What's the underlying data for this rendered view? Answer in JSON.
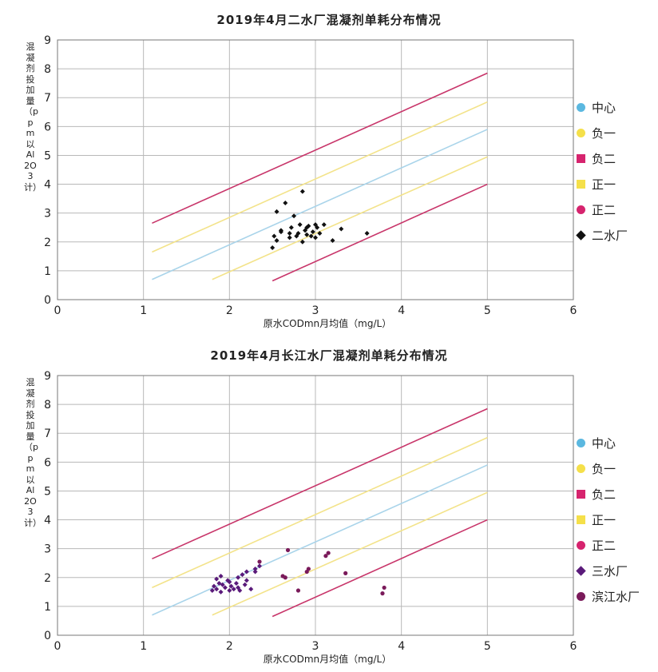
{
  "charts": [
    {
      "title": "2019年4月二水厂混凝剂单耗分布情况",
      "xlabel": "原水CODmn月均值（mg/L）",
      "ylabel": "混凝剂投加量（ppm以Al2O3计）",
      "legend": [
        {
          "label": "中心",
          "shape": "circle",
          "color": "#5bb8e0"
        },
        {
          "label": "负一",
          "shape": "circle",
          "color": "#f5e04a"
        },
        {
          "label": "负二",
          "shape": "square",
          "color": "#d6246e"
        },
        {
          "label": "正一",
          "shape": "square",
          "color": "#f5e04a"
        },
        {
          "label": "正二",
          "shape": "circle",
          "color": "#d6246e"
        },
        {
          "label": "二水厂",
          "shape": "diamond",
          "color": "#111111"
        }
      ]
    },
    {
      "title": "2019年4月长江水厂混凝剂单耗分布情况",
      "xlabel": "原水CODmn月均值（mg/L）",
      "ylabel": "混凝剂投加量（ppm以Al2O3计）",
      "legend": [
        {
          "label": "中心",
          "shape": "circle",
          "color": "#5bb8e0"
        },
        {
          "label": "负一",
          "shape": "circle",
          "color": "#f5e04a"
        },
        {
          "label": "负二",
          "shape": "square",
          "color": "#d6246e"
        },
        {
          "label": "正一",
          "shape": "square",
          "color": "#f5e04a"
        },
        {
          "label": "正二",
          "shape": "circle",
          "color": "#d6246e"
        },
        {
          "label": "三水厂",
          "shape": "diamond",
          "color": "#5a1a7a"
        },
        {
          "label": "滨江水厂",
          "shape": "circle",
          "color": "#7a1a5a"
        }
      ]
    }
  ],
  "chart_data": [
    {
      "type": "scatter",
      "title": "2019年4月二水厂混凝剂单耗分布情况",
      "xlabel": "原水CODmn月均值（mg/L）",
      "ylabel": "混凝剂投加量（ppm以Al2O3计）",
      "xlim": [
        0,
        6
      ],
      "ylim": [
        0,
        9
      ],
      "xticks": [
        0,
        1,
        2,
        3,
        4,
        5,
        6
      ],
      "yticks": [
        0,
        1,
        2,
        3,
        4,
        5,
        6,
        7,
        8,
        9
      ],
      "grid": true,
      "legend_position": "right",
      "lines": [
        {
          "name": "正二",
          "color": "#c8356a",
          "x": [
            1.1,
            5.0
          ],
          "y": [
            2.65,
            7.85
          ]
        },
        {
          "name": "正一",
          "color": "#f3e38a",
          "x": [
            1.1,
            5.0
          ],
          "y": [
            1.65,
            6.85
          ]
        },
        {
          "name": "中心",
          "color": "#a9d4ea",
          "x": [
            1.1,
            5.0
          ],
          "y": [
            0.7,
            5.9
          ]
        },
        {
          "name": "负一",
          "color": "#f3e38a",
          "x": [
            1.8,
            5.0
          ],
          "y": [
            0.7,
            4.95
          ]
        },
        {
          "name": "负二",
          "color": "#c8356a",
          "x": [
            2.5,
            5.0
          ],
          "y": [
            0.65,
            4.0
          ]
        }
      ],
      "series": [
        {
          "name": "二水厂",
          "color": "#111111",
          "shape": "diamond",
          "x": [
            2.5,
            2.52,
            2.55,
            2.6,
            2.65,
            2.7,
            2.72,
            2.75,
            2.78,
            2.8,
            2.82,
            2.85,
            2.88,
            2.9,
            2.92,
            2.95,
            2.97,
            3.0,
            3.0,
            3.02,
            3.05,
            2.6,
            2.85,
            3.1,
            3.2,
            3.3,
            3.6,
            2.9,
            2.7,
            2.55
          ],
          "y": [
            1.8,
            2.2,
            2.05,
            2.35,
            3.35,
            2.3,
            2.5,
            2.9,
            2.2,
            2.3,
            2.6,
            3.75,
            2.4,
            2.25,
            2.55,
            2.2,
            2.35,
            2.6,
            2.15,
            2.5,
            2.3,
            2.4,
            2.0,
            2.6,
            2.05,
            2.45,
            2.3,
            2.5,
            2.15,
            3.05
          ]
        }
      ]
    },
    {
      "type": "scatter",
      "title": "2019年4月长江水厂混凝剂单耗分布情况",
      "xlabel": "原水CODmn月均值（mg/L）",
      "ylabel": "混凝剂投加量（ppm以Al2O3计）",
      "xlim": [
        0,
        6
      ],
      "ylim": [
        0,
        9
      ],
      "xticks": [
        0,
        1,
        2,
        3,
        4,
        5,
        6
      ],
      "yticks": [
        0,
        1,
        2,
        3,
        4,
        5,
        6,
        7,
        8,
        9
      ],
      "grid": true,
      "legend_position": "right",
      "lines": [
        {
          "name": "正二",
          "color": "#c8356a",
          "x": [
            1.1,
            5.0
          ],
          "y": [
            2.65,
            7.85
          ]
        },
        {
          "name": "正一",
          "color": "#f3e38a",
          "x": [
            1.1,
            5.0
          ],
          "y": [
            1.65,
            6.85
          ]
        },
        {
          "name": "中心",
          "color": "#a9d4ea",
          "x": [
            1.1,
            5.0
          ],
          "y": [
            0.7,
            5.9
          ]
        },
        {
          "name": "负一",
          "color": "#f3e38a",
          "x": [
            1.8,
            5.0
          ],
          "y": [
            0.7,
            4.95
          ]
        },
        {
          "name": "负二",
          "color": "#c8356a",
          "x": [
            2.5,
            5.0
          ],
          "y": [
            0.65,
            4.0
          ]
        }
      ],
      "series": [
        {
          "name": "三水厂",
          "color": "#5a1a7a",
          "shape": "diamond",
          "x": [
            1.8,
            1.82,
            1.85,
            1.88,
            1.9,
            1.92,
            1.95,
            1.98,
            2.0,
            2.02,
            2.05,
            2.08,
            2.1,
            2.12,
            2.15,
            2.18,
            2.2,
            2.25,
            2.3,
            2.35,
            1.85,
            1.9,
            2.0,
            2.1,
            2.2,
            2.3
          ],
          "y": [
            1.55,
            1.7,
            1.6,
            1.8,
            1.5,
            1.75,
            1.65,
            1.9,
            1.55,
            1.7,
            1.6,
            1.8,
            2.0,
            1.55,
            2.1,
            1.75,
            2.2,
            1.6,
            2.3,
            2.4,
            1.95,
            2.05,
            1.85,
            1.65,
            1.9,
            2.2
          ]
        },
        {
          "name": "滨江水厂",
          "color": "#7a1a5a",
          "shape": "circle",
          "x": [
            2.65,
            2.68,
            2.8,
            2.92,
            3.12,
            3.15,
            3.35,
            3.78,
            3.8,
            2.35,
            2.9,
            2.62
          ],
          "y": [
            2.0,
            2.95,
            1.55,
            2.3,
            2.75,
            2.85,
            2.15,
            1.45,
            1.65,
            2.55,
            2.2,
            2.05
          ]
        }
      ]
    }
  ]
}
